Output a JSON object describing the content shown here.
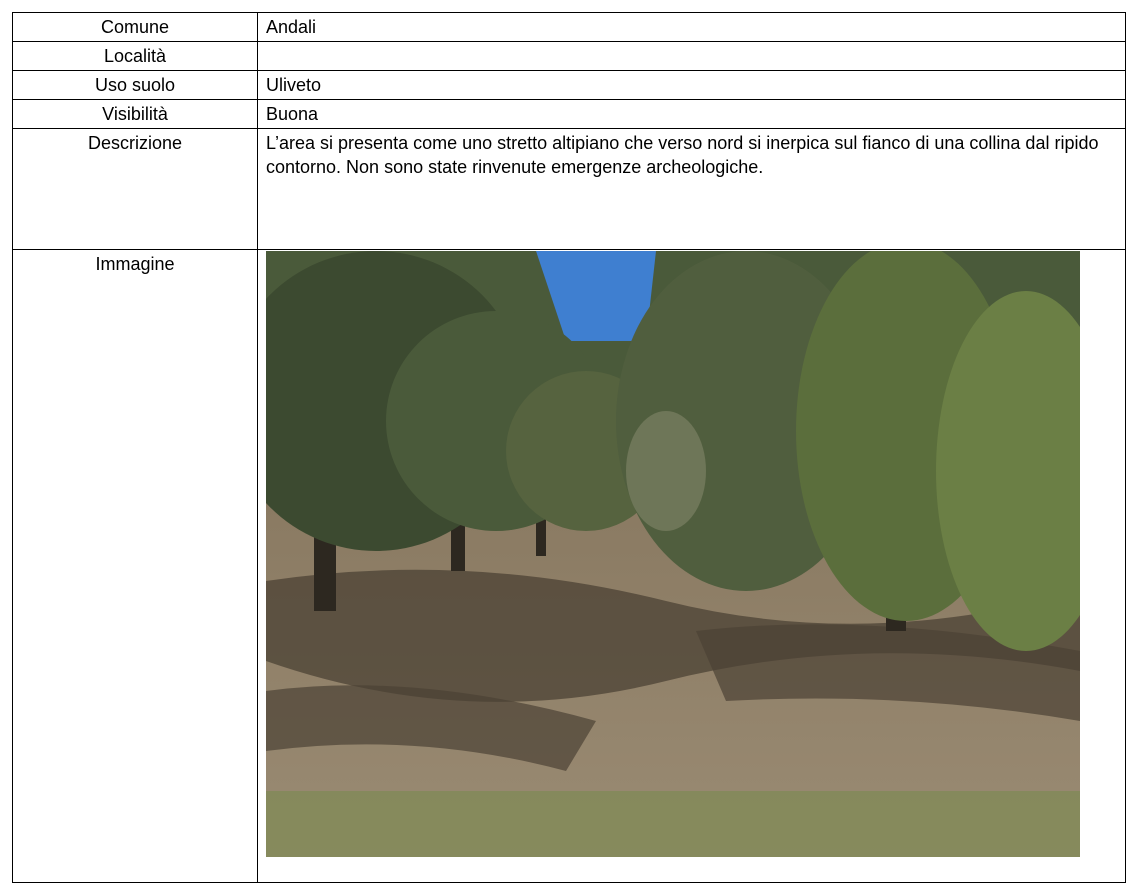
{
  "table": {
    "rows": [
      {
        "label": "Comune",
        "value": "Andali"
      },
      {
        "label": "Località"
      },
      {
        "label": "Uso suolo",
        "value": "Uliveto"
      },
      {
        "label": "Visibilità",
        "value": "Buona"
      },
      {
        "label": "Descrizione",
        "value": "L’area si presenta come uno stretto altipiano che verso nord si inerpica sul fianco di una collina dal ripido contorno. Non sono state rinvenute emergenze archeologiche."
      },
      {
        "label": "Immagine"
      }
    ]
  }
}
